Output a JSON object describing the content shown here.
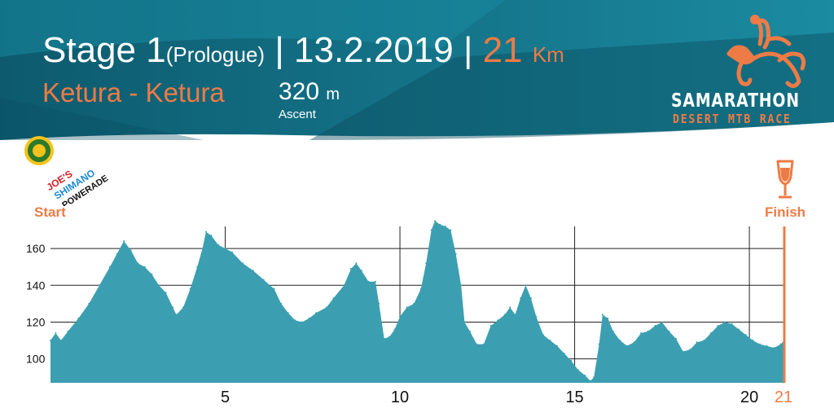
{
  "header": {
    "stage_label": "Stage 1",
    "stage_sub": "(Prologue)",
    "separator": "|",
    "date": "13.2.2019",
    "distance_value": "21",
    "distance_unit": "Km",
    "route": "Ketura - Ketura",
    "ascent_value": "320",
    "ascent_unit": "m",
    "ascent_label": "Ascent"
  },
  "logo": {
    "name": "SAMARATHON",
    "tagline": "DESERT MTB RACE",
    "icon": "camel-rider-icon"
  },
  "sponsors": {
    "items": [
      "JOE'S",
      "SHIMANO",
      "POWERADE"
    ],
    "icon": "sponsor-badge-icon"
  },
  "markers": {
    "start": "Start",
    "finish": "Finish",
    "finish_icon": "beer-glass-icon"
  },
  "colors": {
    "banner_dark": "#0d5a6e",
    "banner_light": "#1b8ba1",
    "accent": "#ee7b45",
    "area": "#3b9fb1",
    "text_white": "#ffffff"
  },
  "chart_data": {
    "type": "area",
    "xlabel": "",
    "ylabel": "",
    "xlim": [
      0,
      21
    ],
    "ylim": [
      87,
      172
    ],
    "x_ticks": [
      5,
      10,
      15,
      20,
      21
    ],
    "x_tick_labels": [
      "5",
      "10",
      "15",
      "20",
      "21"
    ],
    "y_ticks": [
      100,
      120,
      140,
      160
    ],
    "y_tick_labels": [
      "100",
      "120",
      "140",
      "160"
    ],
    "grid": true,
    "series": [
      {
        "points": [
          [
            0,
            110
          ],
          [
            0.15,
            114
          ],
          [
            0.3,
            110
          ],
          [
            0.5,
            115
          ],
          [
            0.8,
            122
          ],
          [
            1.1,
            130
          ],
          [
            1.4,
            140
          ],
          [
            1.7,
            150
          ],
          [
            1.9,
            157
          ],
          [
            2.1,
            164
          ],
          [
            2.3,
            159
          ],
          [
            2.5,
            152
          ],
          [
            2.7,
            150
          ],
          [
            2.9,
            146
          ],
          [
            3.1,
            140
          ],
          [
            3.3,
            136
          ],
          [
            3.5,
            128
          ],
          [
            3.6,
            124
          ],
          [
            3.8,
            128
          ],
          [
            4.0,
            138
          ],
          [
            4.2,
            150
          ],
          [
            4.35,
            160
          ],
          [
            4.45,
            169
          ],
          [
            4.6,
            167
          ],
          [
            4.8,
            162
          ],
          [
            5.0,
            160
          ],
          [
            5.2,
            158
          ],
          [
            5.5,
            152
          ],
          [
            5.8,
            148
          ],
          [
            6.1,
            143
          ],
          [
            6.4,
            138
          ],
          [
            6.6,
            130
          ],
          [
            6.8,
            125
          ],
          [
            7.0,
            121
          ],
          [
            7.2,
            120
          ],
          [
            7.4,
            122
          ],
          [
            7.6,
            125
          ],
          [
            7.9,
            128
          ],
          [
            8.1,
            133
          ],
          [
            8.4,
            140
          ],
          [
            8.6,
            149
          ],
          [
            8.75,
            152
          ],
          [
            8.9,
            148
          ],
          [
            9.1,
            142
          ],
          [
            9.3,
            142
          ],
          [
            9.4,
            130
          ],
          [
            9.55,
            111
          ],
          [
            9.7,
            112
          ],
          [
            9.85,
            116
          ],
          [
            10.0,
            123
          ],
          [
            10.2,
            128
          ],
          [
            10.4,
            130
          ],
          [
            10.6,
            138
          ],
          [
            10.75,
            152
          ],
          [
            10.9,
            170
          ],
          [
            11.0,
            175
          ],
          [
            11.15,
            173
          ],
          [
            11.3,
            172
          ],
          [
            11.45,
            170
          ],
          [
            11.6,
            157
          ],
          [
            11.75,
            140
          ],
          [
            11.85,
            120
          ],
          [
            12.0,
            115
          ],
          [
            12.2,
            108
          ],
          [
            12.4,
            108
          ],
          [
            12.6,
            118
          ],
          [
            12.8,
            121
          ],
          [
            13.0,
            124
          ],
          [
            13.15,
            128
          ],
          [
            13.3,
            124
          ],
          [
            13.45,
            133
          ],
          [
            13.6,
            140
          ],
          [
            13.75,
            133
          ],
          [
            13.9,
            123
          ],
          [
            14.1,
            113
          ],
          [
            14.3,
            110
          ],
          [
            14.5,
            107
          ],
          [
            14.7,
            103
          ],
          [
            14.9,
            99
          ],
          [
            15.1,
            94
          ],
          [
            15.3,
            91
          ],
          [
            15.45,
            88
          ],
          [
            15.55,
            90
          ],
          [
            15.7,
            108
          ],
          [
            15.8,
            124
          ],
          [
            15.95,
            122
          ],
          [
            16.1,
            115
          ],
          [
            16.3,
            110
          ],
          [
            16.5,
            107
          ],
          [
            16.7,
            109
          ],
          [
            16.9,
            114
          ],
          [
            17.1,
            115
          ],
          [
            17.3,
            118
          ],
          [
            17.5,
            120
          ],
          [
            17.7,
            115
          ],
          [
            17.9,
            111
          ],
          [
            18.1,
            104
          ],
          [
            18.3,
            105
          ],
          [
            18.5,
            109
          ],
          [
            18.7,
            110
          ],
          [
            18.9,
            114
          ],
          [
            19.1,
            118
          ],
          [
            19.3,
            120
          ],
          [
            19.5,
            119
          ],
          [
            19.7,
            116
          ],
          [
            19.9,
            113
          ],
          [
            20.1,
            110
          ],
          [
            20.3,
            108
          ],
          [
            20.5,
            107
          ],
          [
            20.7,
            106
          ],
          [
            20.9,
            108
          ],
          [
            21,
            110
          ]
        ]
      }
    ]
  }
}
